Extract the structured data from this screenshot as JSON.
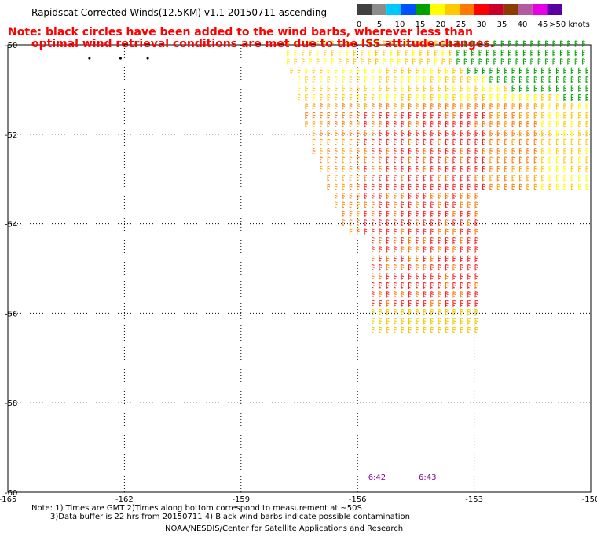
{
  "title": "Rapidscat Corrected Winds(12.5KM) v1.1 20150711 ascending",
  "note_line1": "Note: black circles have been added to the wind barbs, wherever less than",
  "note_line2": "optimal wind retrieval conditions are met due to the ISS attitude changes.",
  "footer_line1": "Note: 1) Times are GMT 2)Times along bottom correspond to measurement at ~50S",
  "footer_line2": "3)Data buffer is 22 hrs from 20150711 4) Black wind barbs indicate possible contamination",
  "footer_line3": "NOAA/NESDIS/Center for Satellite Applications and Research",
  "legend": {
    "labels": [
      "0",
      "5",
      "10",
      "15",
      "20",
      "25",
      "30",
      "35",
      "40",
      "45",
      ">50 knots"
    ],
    "colors": [
      "#404040",
      "#8c8c8c",
      "#00c8ff",
      "#0050ff",
      "#00a000",
      "#ffff00",
      "#ffc800",
      "#ff7800",
      "#ff0000",
      "#c8002a",
      "#8c3c00",
      "#b45aa0",
      "#e600e6",
      "#5a00a0"
    ]
  },
  "chart_data": {
    "type": "wind-barb map",
    "x_ticks": [
      "-165",
      "-162",
      "-159",
      "-156",
      "-153",
      "-150"
    ],
    "y_ticks": [
      "-50",
      "-52",
      "-54",
      "-56",
      "-58",
      "-60"
    ],
    "xlim": [
      -165,
      -150
    ],
    "ylim": [
      -60,
      -50
    ],
    "grid": true,
    "time_labels": [
      {
        "text": "6:42",
        "lon": -155.5
      },
      {
        "text": "6:43",
        "lon": -154.2
      }
    ],
    "regions": [
      {
        "name": "swath",
        "polygon": [
          [
            -158.0,
            -50.0
          ],
          [
            -150.0,
            -50.0
          ],
          [
            -150.0,
            -53.3
          ],
          [
            -152.9,
            -53.3
          ],
          [
            -152.8,
            -56.5
          ],
          [
            -155.7,
            -56.5
          ],
          [
            -155.7,
            -54.3
          ],
          [
            -156.3,
            -54.3
          ],
          [
            -157.2,
            -52.4
          ]
        ],
        "speed_range_knots": [
          20,
          32
        ]
      },
      {
        "name": "green-patch",
        "polygon": [
          [
            -153.8,
            -50.0
          ],
          [
            -150.0,
            -50.0
          ],
          [
            -150.0,
            -51.3
          ],
          [
            -151.5,
            -51.2
          ],
          [
            -153.3,
            -50.7
          ]
        ],
        "speed_range_knots": [
          15,
          20
        ]
      }
    ],
    "flagged_points": [
      {
        "lon": -162.9,
        "lat": -50.3
      },
      {
        "lon": -162.1,
        "lat": -50.3
      },
      {
        "lon": -161.4,
        "lat": -50.3
      }
    ]
  }
}
